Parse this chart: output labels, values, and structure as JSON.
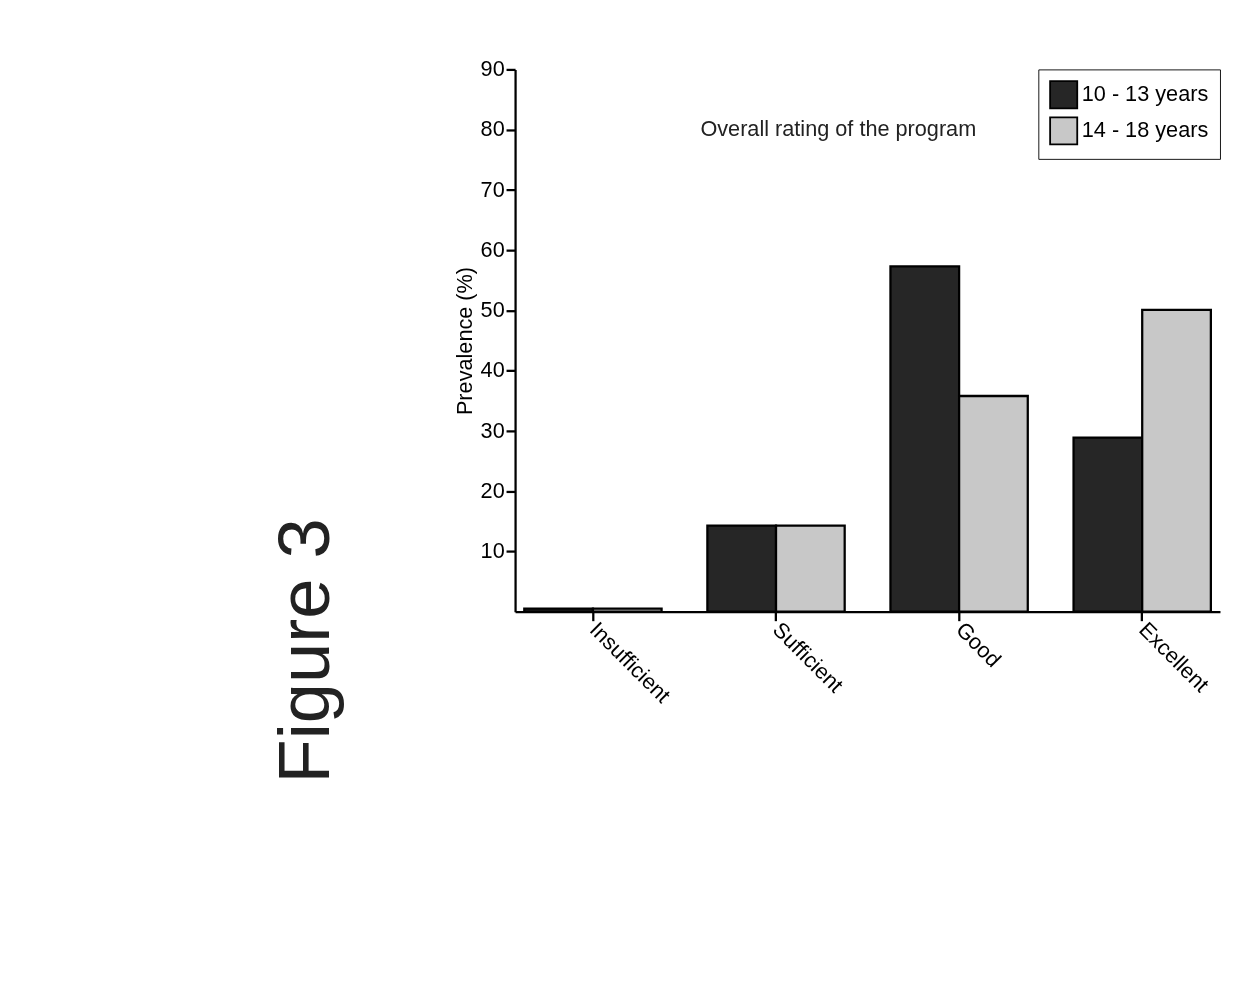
{
  "chart_data": {
    "type": "bar",
    "ylabel": "Prevalence (%)",
    "categories": [
      "Insufficient",
      "Sufficient",
      "Good",
      "Excellent"
    ],
    "series": [
      {
        "name": "10 - 13 years",
        "color": "#262626",
        "values": [
          0.5,
          14.3,
          57.3,
          28.9
        ]
      },
      {
        "name": "14 - 18 years",
        "color": "#c8c8c8",
        "values": [
          0.5,
          14.3,
          35.8,
          50.1
        ]
      }
    ],
    "ylim": [
      0,
      90
    ],
    "yticks": [
      10,
      20,
      30,
      40,
      50,
      60,
      70,
      80,
      90
    ],
    "grid": false,
    "legend": "top right",
    "annotations": [
      "Overall rating of the program",
      "Figure 3"
    ]
  }
}
